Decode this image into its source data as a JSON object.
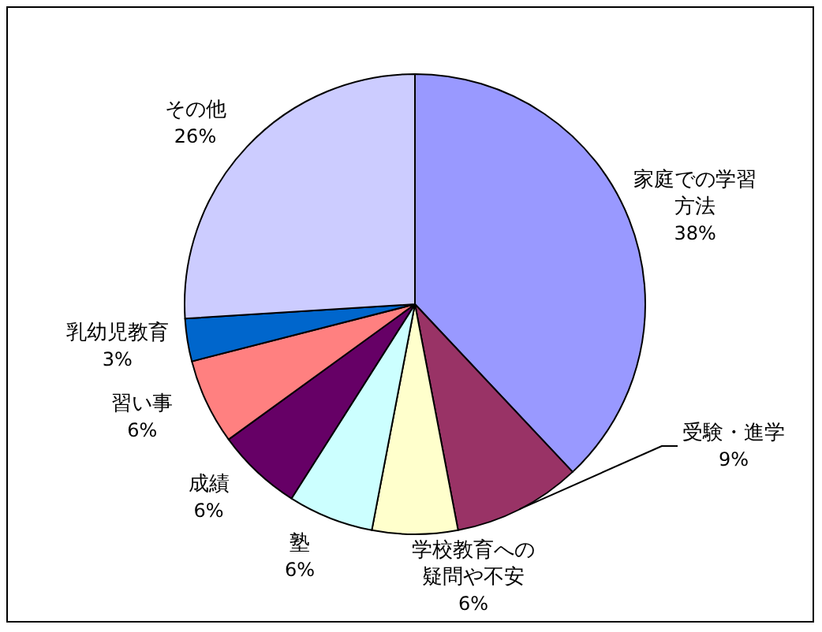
{
  "chart_data": {
    "type": "pie",
    "categories": [
      "家庭での学習方法",
      "受験・進学",
      "学校教育への疑問や不安",
      "塾",
      "成績",
      "習い事",
      "乳幼児教育",
      "その他"
    ],
    "values": [
      38,
      9,
      6,
      6,
      6,
      6,
      3,
      26
    ],
    "colors": [
      "#9999ff",
      "#993366",
      "#ffffcc",
      "#ccffff",
      "#660066",
      "#ff8080",
      "#0066cc",
      "#ccccff"
    ],
    "value_labels": [
      "38%",
      "9%",
      "6%",
      "6%",
      "6%",
      "6%",
      "3%",
      "26%"
    ]
  }
}
